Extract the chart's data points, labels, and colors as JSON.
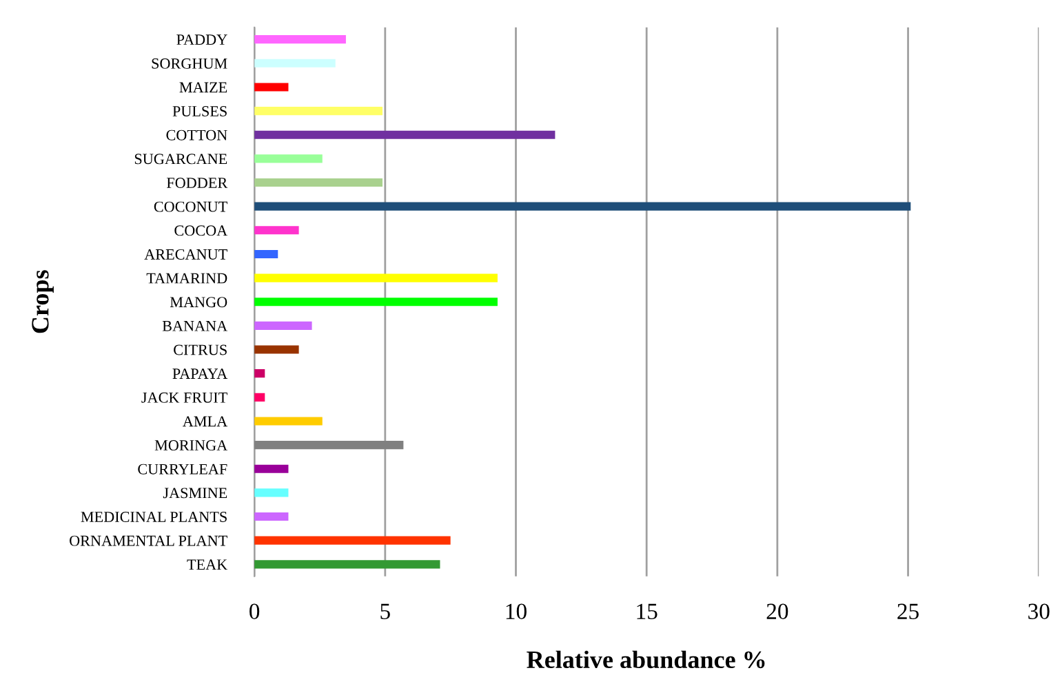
{
  "chart_data": {
    "type": "bar",
    "orientation": "horizontal",
    "xlabel": "Relative abundance %",
    "ylabel": "Crops",
    "categories": [
      "PADDY",
      "SORGHUM",
      "MAIZE",
      "PULSES",
      "COTTON",
      "SUGARCANE",
      "FODDER",
      "COCONUT",
      "COCOA",
      "ARECANUT",
      "TAMARIND",
      "MANGO",
      "BANANA",
      "CITRUS",
      "PAPAYA",
      "JACK FRUIT",
      "AMLA",
      "MORINGA",
      "CURRYLEAF",
      "JASMINE",
      "MEDICINAL PLANTS",
      "ORNAMENTAL PLANT",
      "TEAK"
    ],
    "values": [
      3.5,
      3.1,
      1.3,
      4.9,
      11.5,
      2.6,
      4.9,
      25.1,
      1.7,
      0.9,
      9.3,
      9.3,
      2.2,
      1.7,
      0.4,
      0.4,
      2.6,
      5.7,
      1.3,
      1.3,
      1.3,
      7.5,
      7.1
    ],
    "colors": [
      "#ff66ff",
      "#ccffff",
      "#ff0000",
      "#ffff66",
      "#7030a0",
      "#99ff99",
      "#a9d18e",
      "#1f4e79",
      "#ff33cc",
      "#3366ff",
      "#ffff00",
      "#00ff00",
      "#cc66ff",
      "#993300",
      "#cc0066",
      "#ff0066",
      "#ffcc00",
      "#808080",
      "#990099",
      "#66ffff",
      "#cc66ff",
      "#ff3300",
      "#339933"
    ],
    "xlim": [
      0,
      30
    ],
    "xticks": [
      0,
      5,
      10,
      15,
      20,
      25,
      30
    ],
    "grid": "x"
  }
}
